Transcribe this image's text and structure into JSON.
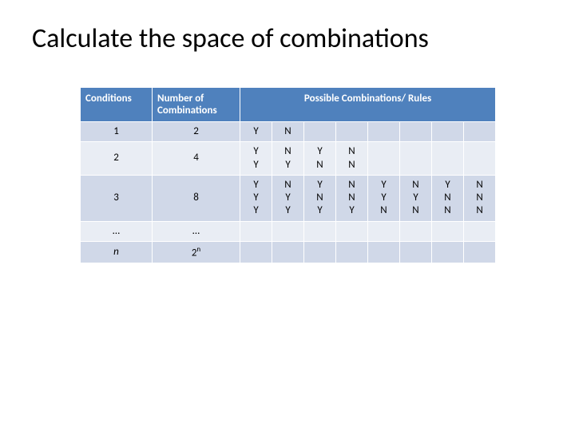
{
  "title": "Calculate the space of combinations",
  "headers": {
    "conditions": "Conditions",
    "number": "Number of\nCombinations",
    "possible": "Possible Combinations/ Rules"
  },
  "rows": [
    {
      "cond": "1",
      "num": "2",
      "cells": [
        "Y",
        "N",
        "",
        "",
        "",
        "",
        "",
        ""
      ]
    },
    {
      "cond": "2",
      "num": "4",
      "cells": [
        "Y\nY",
        "N\nY",
        "Y\nN",
        "N\nN",
        "",
        "",
        "",
        ""
      ]
    },
    {
      "cond": "3",
      "num": "8",
      "cells": [
        "Y\nY\nY",
        "N\nY\nY",
        "Y\nN\nY",
        "N\nN\nY",
        "Y\nY\nN",
        "N\nY\nN",
        "Y\nN\nN",
        "N\nN\nN"
      ]
    },
    {
      "cond": "…",
      "num": "…",
      "cells": [
        "",
        "",
        "",
        "",
        "",
        "",
        "",
        ""
      ]
    },
    {
      "cond": "n",
      "cond_italic": true,
      "num_html": "2<sup>n</sup>",
      "cells": [
        "",
        "",
        "",
        "",
        "",
        "",
        "",
        ""
      ]
    }
  ],
  "colors": {
    "header_bg": "#4f81bd",
    "row_odd": "#d0d8e8",
    "row_even": "#e9edf4",
    "border": "#ffffff"
  }
}
